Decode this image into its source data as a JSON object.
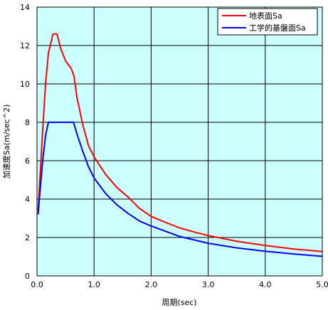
{
  "chart_data": {
    "type": "line",
    "title": "",
    "xlabel": "周期(sec)",
    "ylabel": "加速度Sa(m/sec^2)",
    "xlim": [
      0,
      5
    ],
    "ylim": [
      0,
      14
    ],
    "xticks": [
      0,
      1,
      2,
      3,
      4,
      5
    ],
    "yticks": [
      0,
      2,
      4,
      6,
      8,
      10,
      12,
      14
    ],
    "xtick_labels": [
      "0.0",
      "1.0",
      "2.0",
      "3.0",
      "4.0",
      "5.0"
    ],
    "ytick_labels": [
      "0",
      "2",
      "4",
      "6",
      "8",
      "10",
      "12",
      "14"
    ],
    "grid": true,
    "legend_position": "top-right",
    "plot_background": "#ccffff",
    "series": [
      {
        "name": "地表面Sa",
        "color": "#ff0000",
        "points": [
          [
            0.02,
            3.4
          ],
          [
            0.05,
            5.0
          ],
          [
            0.1,
            7.6
          ],
          [
            0.15,
            10.0
          ],
          [
            0.2,
            11.6
          ],
          [
            0.28,
            12.6
          ],
          [
            0.35,
            12.6
          ],
          [
            0.42,
            11.8
          ],
          [
            0.5,
            11.2
          ],
          [
            0.6,
            10.8
          ],
          [
            0.65,
            10.4
          ],
          [
            0.7,
            9.3
          ],
          [
            0.8,
            7.9
          ],
          [
            0.9,
            6.8
          ],
          [
            1.0,
            6.2
          ],
          [
            1.2,
            5.3
          ],
          [
            1.4,
            4.6
          ],
          [
            1.6,
            4.1
          ],
          [
            1.8,
            3.5
          ],
          [
            2.0,
            3.1
          ],
          [
            2.2,
            2.85
          ],
          [
            2.5,
            2.5
          ],
          [
            2.8,
            2.25
          ],
          [
            3.0,
            2.1
          ],
          [
            3.5,
            1.8
          ],
          [
            4.0,
            1.58
          ],
          [
            4.5,
            1.4
          ],
          [
            5.0,
            1.27
          ]
        ]
      },
      {
        "name": "工学的基盤面Sa",
        "color": "#0000ff",
        "points": [
          [
            0.02,
            3.2
          ],
          [
            0.05,
            4.3
          ],
          [
            0.1,
            6.0
          ],
          [
            0.15,
            7.3
          ],
          [
            0.2,
            8.0
          ],
          [
            0.3,
            8.0
          ],
          [
            0.5,
            8.0
          ],
          [
            0.64,
            8.0
          ],
          [
            0.7,
            7.4
          ],
          [
            0.8,
            6.5
          ],
          [
            0.9,
            5.7
          ],
          [
            1.0,
            5.1
          ],
          [
            1.2,
            4.3
          ],
          [
            1.4,
            3.7
          ],
          [
            1.6,
            3.25
          ],
          [
            1.8,
            2.85
          ],
          [
            2.0,
            2.6
          ],
          [
            2.5,
            2.05
          ],
          [
            3.0,
            1.7
          ],
          [
            3.5,
            1.46
          ],
          [
            4.0,
            1.28
          ],
          [
            4.5,
            1.14
          ],
          [
            5.0,
            1.02
          ]
        ]
      }
    ]
  }
}
